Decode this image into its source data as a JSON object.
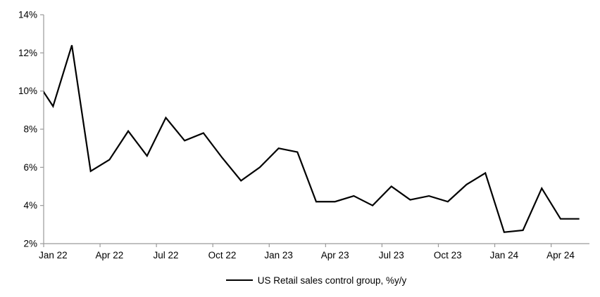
{
  "chart_data": {
    "type": "line",
    "title": "",
    "legend_label": "US Retail sales control group, %y/y",
    "legend_position": "bottom-center",
    "grid": false,
    "line_color": "#000000",
    "axis_color": "#9a9a9a",
    "text_color": "#000000",
    "ylim": [
      2,
      14
    ],
    "y_tick_step": 2,
    "y_tick_labels": [
      "2%",
      "4%",
      "6%",
      "8%",
      "10%",
      "12%",
      "14%"
    ],
    "x_tick_labels": [
      "Jan 22",
      "Apr 22",
      "Jul 22",
      "Oct 22",
      "Jan 23",
      "Apr 23",
      "Jul 23",
      "Oct 23",
      "Jan 24",
      "Apr 24"
    ],
    "first_point_clipped_at_left_edge": true,
    "x": [
      "Dec 21",
      "Jan 22",
      "Feb 22",
      "Mar 22",
      "Apr 22",
      "May 22",
      "Jun 22",
      "Jul 22",
      "Aug 22",
      "Sep 22",
      "Oct 22",
      "Nov 22",
      "Dec 22",
      "Jan 23",
      "Feb 23",
      "Mar 23",
      "Apr 23",
      "May 23",
      "Jun 23",
      "Jul 23",
      "Aug 23",
      "Sep 23",
      "Oct 23",
      "Nov 23",
      "Dec 23",
      "Jan 24",
      "Feb 24",
      "Mar 24",
      "Apr 24",
      "May 24"
    ],
    "values": [
      10.7,
      9.2,
      12.4,
      5.8,
      6.4,
      7.9,
      6.6,
      8.6,
      7.4,
      7.8,
      6.5,
      5.3,
      6.0,
      7.0,
      6.8,
      4.2,
      4.2,
      4.5,
      4.0,
      5.0,
      4.3,
      4.5,
      4.2,
      5.1,
      5.7,
      2.6,
      2.7,
      4.9,
      3.3,
      3.3
    ]
  }
}
